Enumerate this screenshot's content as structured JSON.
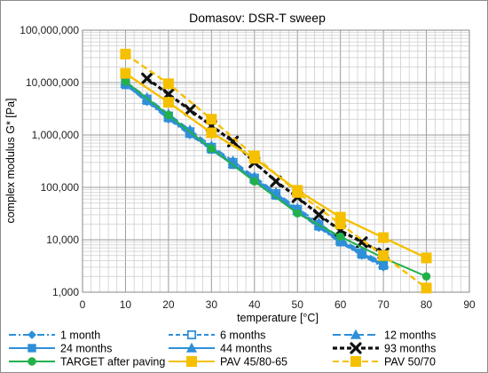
{
  "chart_data": {
    "type": "line",
    "title": "Domasov: DSR-T sweep",
    "xlabel": "temperature [°C]",
    "ylabel": "complex modulus G* [Pa]",
    "xlim": [
      0,
      90
    ],
    "ylim": [
      1000,
      100000000
    ],
    "yscale": "log",
    "grid": true,
    "legend_position": "bottom",
    "x_ticks": [
      "0",
      "10",
      "20",
      "30",
      "40",
      "50",
      "60",
      "70",
      "80",
      "90"
    ],
    "y_ticks": [
      "1,000",
      "10,000",
      "100,000",
      "1,000,000",
      "10,000,000",
      "100,000,000"
    ],
    "series": [
      {
        "name": "1 month",
        "color": "#2f8fd8",
        "dash": "8,3,2,3",
        "marker": "diamond",
        "filled": true,
        "x": [
          10,
          15,
          20,
          25,
          30,
          35,
          40,
          45,
          50,
          55,
          60,
          65,
          70
        ],
        "y": [
          9000000,
          4300000,
          2000000,
          1000000,
          520000,
          270000,
          135000,
          68000,
          34000,
          17000,
          8800,
          5000,
          3000
        ]
      },
      {
        "name": "6 months",
        "color": "#2f8fd8",
        "dash": "5,3",
        "marker": "square",
        "filled": false,
        "x": [
          10,
          15,
          20,
          25,
          30,
          35,
          40,
          45,
          50,
          55,
          60,
          65,
          70
        ],
        "y": [
          10000000,
          4800000,
          2300000,
          1150000,
          580000,
          300000,
          150000,
          76000,
          38000,
          19500,
          10000,
          5600,
          3300
        ]
      },
      {
        "name": "12 months",
        "color": "#2f8fd8",
        "dash": "9,4",
        "marker": "triangle",
        "filled": true,
        "x": [
          10,
          15,
          20,
          25,
          30,
          35,
          40,
          45,
          50,
          55,
          60,
          65,
          70
        ],
        "y": [
          10500000,
          5200000,
          2500000,
          1250000,
          620000,
          320000,
          160000,
          80000,
          40000,
          21000,
          10500,
          6000,
          3600
        ]
      },
      {
        "name": "24 months",
        "color": "#2f8fd8",
        "dash": "",
        "marker": "square",
        "filled": true,
        "x": [
          10,
          15,
          20,
          25,
          30,
          35,
          40,
          45,
          50,
          55,
          60,
          65,
          70
        ],
        "y": [
          9000000,
          4500000,
          2100000,
          1050000,
          530000,
          270000,
          140000,
          70000,
          35000,
          18000,
          9000,
          5200,
          3200
        ]
      },
      {
        "name": "44 months",
        "color": "#2f8fd8",
        "dash": "",
        "marker": "triangle",
        "filled": true,
        "x": [
          10,
          15,
          20,
          25,
          30,
          35,
          40,
          45,
          50,
          55,
          60,
          65,
          70
        ],
        "y": [
          9500000,
          4700000,
          2200000,
          1100000,
          560000,
          285000,
          145000,
          73000,
          36000,
          18500,
          9500,
          5500,
          3400
        ]
      },
      {
        "name": "93 months",
        "color": "#111111",
        "dash": "5,3",
        "marker": "x",
        "filled": true,
        "x": [
          15,
          20,
          25,
          30,
          35,
          40,
          45,
          50,
          55,
          60,
          65,
          70
        ],
        "y": [
          12000000,
          6000000,
          3000000,
          1500000,
          750000,
          300000,
          130000,
          65000,
          30000,
          15000,
          9000,
          5500
        ]
      },
      {
        "name": "TARGET after paving",
        "color": "#22b04a",
        "dash": "",
        "marker": "circle",
        "filled": true,
        "x": [
          10,
          20,
          30,
          40,
          50,
          60,
          70,
          80
        ],
        "y": [
          10500000,
          2400000,
          550000,
          130000,
          32000,
          11500,
          4500,
          2000
        ]
      },
      {
        "name": "PAV 45/80-65",
        "color": "#f5c000",
        "dash": "",
        "marker": "square",
        "filled": true,
        "x": [
          10,
          20,
          30,
          40,
          50,
          60,
          70,
          80
        ],
        "y": [
          15000000,
          4200000,
          1100000,
          360000,
          88000,
          27000,
          11000,
          4500
        ]
      },
      {
        "name": "PAV 50/70",
        "color": "#f5c000",
        "dash": "7,4",
        "marker": "square",
        "filled": true,
        "x": [
          10,
          20,
          30,
          40,
          50,
          60,
          70,
          80
        ],
        "y": [
          35000000,
          9500000,
          2000000,
          400000,
          80000,
          20000,
          5000,
          1200
        ]
      }
    ]
  }
}
